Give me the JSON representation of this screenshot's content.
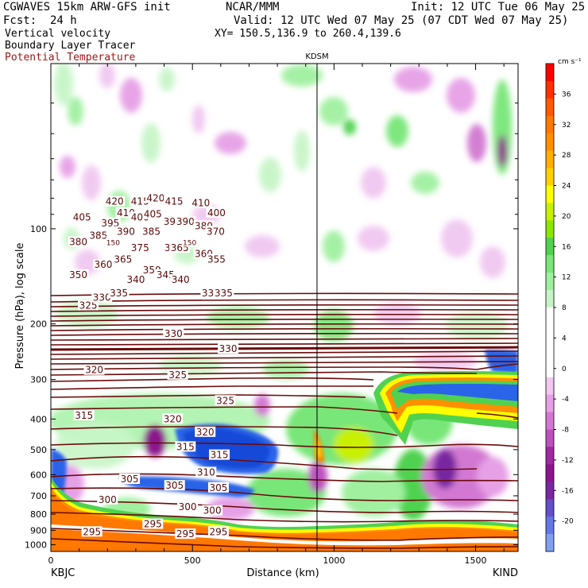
{
  "header": {
    "model": "CGWAVES 15km ARW-GFS init",
    "org": "NCAR/MMM",
    "init": "Init: 12 UTC Tue 06 May 25",
    "fcst_label": "Fcst:",
    "fcst_value": "24 h",
    "valid": "Valid: 12 UTC Wed 07 May 25 (07 CDT Wed 07 May 25)",
    "field1": "Vertical velocity",
    "xy": "XY= 150.5,136.9 to 260.4,139.6",
    "field2": "Boundary Layer Tracer",
    "field3": "Potential Temperature",
    "field3_color": "#a01818"
  },
  "chart_data": {
    "type": "heatmap",
    "ylabel": "Pressure (hPa), log scale",
    "xlabel": "Distance (km)",
    "y_scale": "log",
    "y_ticks": [
      100,
      200,
      300,
      400,
      500,
      600,
      700,
      800,
      900,
      1000
    ],
    "x_ticks": [
      0,
      500,
      1000,
      1500
    ],
    "xlim": [
      0,
      1650
    ],
    "ylim": [
      1050,
      30
    ],
    "endpoints": {
      "left": "KBJC",
      "right": "KIND"
    },
    "marker": {
      "label": "KDSM",
      "x": 940
    },
    "colorbar": {
      "units": "cm s⁻¹",
      "ticks": [
        36,
        32,
        28,
        24,
        20,
        16,
        12,
        8,
        4,
        0,
        -4,
        -8,
        -12,
        -16,
        -20
      ],
      "colors": [
        "#ff0000",
        "#ff3000",
        "#ff5a00",
        "#ff7800",
        "#ff9000",
        "#ffb000",
        "#ffd200",
        "#ffff00",
        "#c8f000",
        "#8ce600",
        "#50d250",
        "#78e678",
        "#a0f0a0",
        "#c8f5c8",
        "#ffffff",
        "#ffffff",
        "#ffffff",
        "#ffffff",
        "#f0c8f0",
        "#e6a0e6",
        "#d278d2",
        "#be50be",
        "#a028a0",
        "#8c148c",
        "#7828a0",
        "#6450c8",
        "#6478e6",
        "#82a0f0"
      ]
    },
    "theta_contours": [
      {
        "label": "420",
        "x": 225,
        "p": 82
      },
      {
        "label": "415",
        "x": 315,
        "p": 82
      },
      {
        "label": "420",
        "x": 370,
        "p": 80
      },
      {
        "label": "415",
        "x": 435,
        "p": 82
      },
      {
        "label": "410",
        "x": 530,
        "p": 83
      },
      {
        "label": "405",
        "x": 110,
        "p": 92
      },
      {
        "label": "410",
        "x": 265,
        "p": 89
      },
      {
        "label": "400",
        "x": 315,
        "p": 92
      },
      {
        "label": "405",
        "x": 360,
        "p": 90
      },
      {
        "label": "395",
        "x": 430,
        "p": 95
      },
      {
        "label": "390",
        "x": 475,
        "p": 95
      },
      {
        "label": "380",
        "x": 540,
        "p": 98
      },
      {
        "label": "400",
        "x": 585,
        "p": 89
      },
      {
        "label": "395",
        "x": 210,
        "p": 96
      },
      {
        "label": "390",
        "x": 265,
        "p": 102
      },
      {
        "label": "385",
        "x": 355,
        "p": 102
      },
      {
        "label": "370",
        "x": 582,
        "p": 102
      },
      {
        "label": "380",
        "x": 97,
        "p": 110
      },
      {
        "label": "385",
        "x": 168,
        "p": 105
      },
      {
        "label": "375",
        "x": 315,
        "p": 115
      },
      {
        "label": "370",
        "x": 433,
        "p": 115
      },
      {
        "label": "365",
        "x": 455,
        "p": 115
      },
      {
        "label": "360",
        "x": 540,
        "p": 120
      },
      {
        "label": "355",
        "x": 585,
        "p": 125
      },
      {
        "label": "350",
        "x": 97,
        "p": 140
      },
      {
        "label": "360",
        "x": 185,
        "p": 130
      },
      {
        "label": "365",
        "x": 255,
        "p": 125
      },
      {
        "label": "350",
        "x": 357,
        "p": 135
      },
      {
        "label": "345",
        "x": 405,
        "p": 140
      },
      {
        "label": "340",
        "x": 300,
        "p": 145
      },
      {
        "label": "340",
        "x": 458,
        "p": 145
      },
      {
        "label": "325",
        "x": 132,
        "p": 175
      },
      {
        "label": "330",
        "x": 180,
        "p": 165
      },
      {
        "label": "335",
        "x": 240,
        "p": 160
      },
      {
        "label": "335",
        "x": 565,
        "p": 160
      },
      {
        "label": "335",
        "x": 610,
        "p": 160
      },
      {
        "label": "330",
        "x": 433,
        "p": 215
      },
      {
        "label": "330",
        "x": 626,
        "p": 240
      },
      {
        "label": "320",
        "x": 153,
        "p": 280
      },
      {
        "label": "325",
        "x": 448,
        "p": 290
      },
      {
        "label": "325",
        "x": 616,
        "p": 350
      },
      {
        "label": "315",
        "x": 117,
        "p": 390
      },
      {
        "label": "320",
        "x": 430,
        "p": 400
      },
      {
        "label": "320",
        "x": 545,
        "p": 440
      },
      {
        "label": "315",
        "x": 475,
        "p": 490
      },
      {
        "label": "315",
        "x": 595,
        "p": 520
      },
      {
        "label": "310",
        "x": 548,
        "p": 590
      },
      {
        "label": "305",
        "x": 278,
        "p": 620
      },
      {
        "label": "305",
        "x": 437,
        "p": 650
      },
      {
        "label": "305",
        "x": 592,
        "p": 660
      },
      {
        "label": "300",
        "x": 200,
        "p": 720
      },
      {
        "label": "300",
        "x": 483,
        "p": 760
      },
      {
        "label": "300",
        "x": 570,
        "p": 780
      },
      {
        "label": "295",
        "x": 145,
        "p": 910
      },
      {
        "label": "295",
        "x": 360,
        "p": 860
      },
      {
        "label": "295",
        "x": 475,
        "p": 925
      },
      {
        "label": "295",
        "x": 592,
        "p": 910
      },
      {
        "label": "150",
        "x": 220,
        "p": 110
      },
      {
        "label": "150",
        "x": 490,
        "p": 110
      }
    ]
  }
}
